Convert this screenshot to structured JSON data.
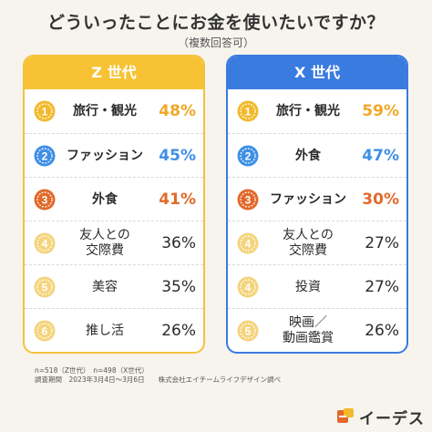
{
  "title": "どういったことにお金を使いたいですか？",
  "subtitle": "（複数回答可）",
  "colors": {
    "z_header": "#f7c334",
    "x_header": "#3a7be0",
    "rank1": "#f2b92c",
    "rank2": "#3f8fe6",
    "rank3": "#e2692a",
    "rank_other": "#f4d47c"
  },
  "chart_data": {
    "type": "table",
    "title": "どういったことにお金を使いたいですか？",
    "subtitle": "（複数回答可）",
    "groups": [
      {
        "name": "Z 世代",
        "rows": [
          {
            "rank": "1",
            "item": "旅行・観光",
            "value": 48,
            "label": "48%"
          },
          {
            "rank": "2",
            "item": "ファッション",
            "value": 45,
            "label": "45%"
          },
          {
            "rank": "3",
            "item": "外食",
            "value": 41,
            "label": "41%"
          },
          {
            "rank": "4",
            "item_line1": "友人との",
            "item_line2": "交際費",
            "value": 36,
            "label": "36%"
          },
          {
            "rank": "5",
            "item": "美容",
            "value": 35,
            "label": "35%"
          },
          {
            "rank": "6",
            "item": "推し活",
            "value": 26,
            "label": "26%"
          }
        ]
      },
      {
        "name": "X 世代",
        "rows": [
          {
            "rank": "1",
            "item": "旅行・観光",
            "value": 59,
            "label": "59%"
          },
          {
            "rank": "2",
            "item": "外食",
            "value": 47,
            "label": "47%"
          },
          {
            "rank": "3",
            "item": "ファッション",
            "value": 30,
            "label": "30%"
          },
          {
            "rank": "4",
            "item_line1": "友人との",
            "item_line2": "交際費",
            "value": 27,
            "label": "27%"
          },
          {
            "rank": "4",
            "item": "投資",
            "value": 27,
            "label": "27%"
          },
          {
            "rank": "5",
            "item_line1": "映画／",
            "item_line2": "動画鑑賞",
            "value": 26,
            "label": "26%"
          }
        ]
      }
    ]
  },
  "footnotes": {
    "sample": "n=518（Z世代）　n=498（X世代）",
    "period": "調査期間　2023年3月4日～3月6日　　株式会社エイチームライフデザイン調べ"
  },
  "logo": {
    "text": "イーデス",
    "icon": "ides-logo-icon"
  }
}
